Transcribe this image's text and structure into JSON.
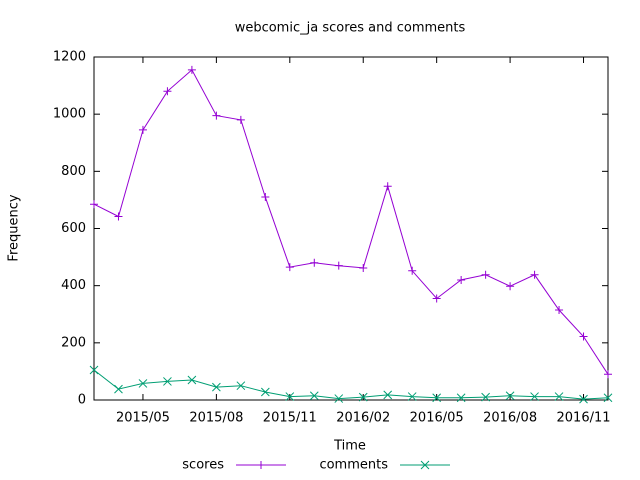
{
  "chart_data": {
    "type": "line",
    "title": "webcomic_ja scores and comments",
    "xlabel": "Time",
    "ylabel": "Frequency",
    "x": [
      "2015/03",
      "2015/04",
      "2015/05",
      "2015/06",
      "2015/07",
      "2015/08",
      "2015/09",
      "2015/10",
      "2015/11",
      "2015/12",
      "2016/01",
      "2016/02",
      "2016/03",
      "2016/04",
      "2016/05",
      "2016/06",
      "2016/07",
      "2016/08",
      "2016/09",
      "2016/10",
      "2016/11",
      "2016/12"
    ],
    "series": [
      {
        "name": "scores",
        "color": "#9400d3",
        "marker": "plus",
        "values": [
          685,
          642,
          945,
          1080,
          1155,
          995,
          980,
          710,
          465,
          480,
          470,
          462,
          748,
          452,
          355,
          420,
          438,
          398,
          438,
          315,
          222,
          90
        ]
      },
      {
        "name": "comments",
        "color": "#009e73",
        "marker": "cross",
        "values": [
          105,
          38,
          58,
          65,
          70,
          45,
          50,
          28,
          12,
          15,
          5,
          10,
          18,
          12,
          8,
          8,
          10,
          15,
          12,
          12,
          3,
          8
        ]
      }
    ],
    "xlim": [
      "2015/03",
      "2016/12"
    ],
    "xticks": [
      "2015/05",
      "2015/08",
      "2015/11",
      "2016/02",
      "2016/05",
      "2016/08",
      "2016/11"
    ],
    "ylim": [
      0,
      1200
    ],
    "yticks": [
      0,
      200,
      400,
      600,
      800,
      1000,
      1200
    ],
    "legend": "bottom"
  }
}
